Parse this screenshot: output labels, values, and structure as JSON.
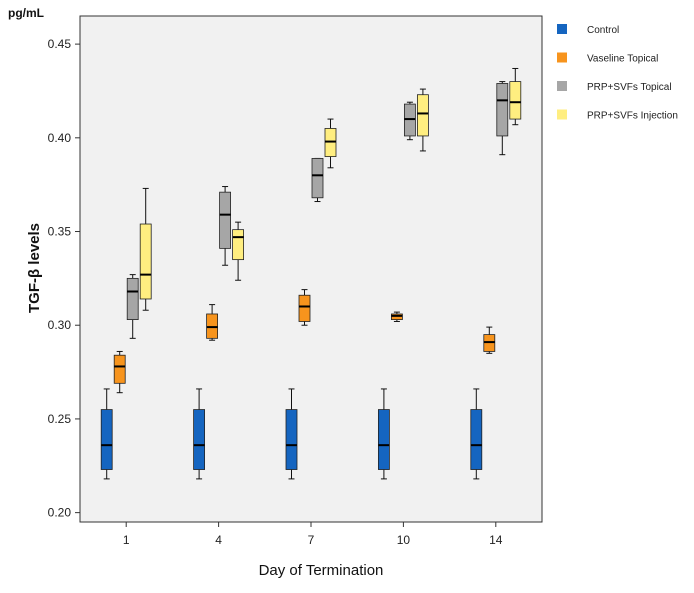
{
  "chart_data": {
    "type": "box",
    "title": "",
    "unit_label": "pg/mL",
    "ylabel": "TGF-β levels",
    "xlabel": "Day of Termination",
    "ylim": [
      0.195,
      0.465
    ],
    "yticks": [
      "0.20",
      "0.25",
      "0.30",
      "0.35",
      "0.40",
      "0.45"
    ],
    "categories": [
      "1",
      "4",
      "7",
      "10",
      "14"
    ],
    "legend_position": "right",
    "series": [
      {
        "name": "Control",
        "color": "#1565c0",
        "boxes": [
          {
            "min": 0.218,
            "q1": 0.223,
            "median": 0.236,
            "q3": 0.255,
            "max": 0.266
          },
          {
            "min": 0.218,
            "q1": 0.223,
            "median": 0.236,
            "q3": 0.255,
            "max": 0.266
          },
          {
            "min": 0.218,
            "q1": 0.223,
            "median": 0.236,
            "q3": 0.255,
            "max": 0.266
          },
          {
            "min": 0.218,
            "q1": 0.223,
            "median": 0.236,
            "q3": 0.255,
            "max": 0.266
          },
          {
            "min": 0.218,
            "q1": 0.223,
            "median": 0.236,
            "q3": 0.255,
            "max": 0.266
          }
        ]
      },
      {
        "name": "Vaseline Topical",
        "color": "#f7941d",
        "boxes": [
          {
            "min": 0.264,
            "q1": 0.269,
            "median": 0.278,
            "q3": 0.284,
            "max": 0.286
          },
          {
            "min": 0.292,
            "q1": 0.293,
            "median": 0.299,
            "q3": 0.306,
            "max": 0.311
          },
          {
            "min": 0.3,
            "q1": 0.302,
            "median": 0.31,
            "q3": 0.316,
            "max": 0.319
          },
          {
            "min": 0.302,
            "q1": 0.303,
            "median": 0.305,
            "q3": 0.306,
            "max": 0.307
          },
          {
            "min": 0.285,
            "q1": 0.286,
            "median": 0.291,
            "q3": 0.295,
            "max": 0.299
          }
        ]
      },
      {
        "name": "PRP+SVFs Topical",
        "color": "#a6a6a6",
        "boxes": [
          {
            "min": 0.293,
            "q1": 0.303,
            "median": 0.318,
            "q3": 0.325,
            "max": 0.327
          },
          {
            "min": 0.332,
            "q1": 0.341,
            "median": 0.359,
            "q3": 0.371,
            "max": 0.374
          },
          {
            "min": 0.366,
            "q1": 0.368,
            "median": 0.38,
            "q3": 0.389,
            "max": 0.389
          },
          {
            "min": 0.399,
            "q1": 0.401,
            "median": 0.41,
            "q3": 0.418,
            "max": 0.419
          },
          {
            "min": 0.391,
            "q1": 0.401,
            "median": 0.42,
            "q3": 0.429,
            "max": 0.43
          }
        ]
      },
      {
        "name": "PRP+SVFs Injection",
        "color": "#ffee80",
        "boxes": [
          {
            "min": 0.308,
            "q1": 0.314,
            "median": 0.327,
            "q3": 0.354,
            "max": 0.373
          },
          {
            "min": 0.324,
            "q1": 0.335,
            "median": 0.347,
            "q3": 0.351,
            "max": 0.355
          },
          {
            "min": 0.384,
            "q1": 0.39,
            "median": 0.398,
            "q3": 0.405,
            "max": 0.41
          },
          {
            "min": 0.393,
            "q1": 0.401,
            "median": 0.413,
            "q3": 0.423,
            "max": 0.426
          },
          {
            "min": 0.407,
            "q1": 0.41,
            "median": 0.419,
            "q3": 0.43,
            "max": 0.437
          }
        ]
      }
    ]
  }
}
